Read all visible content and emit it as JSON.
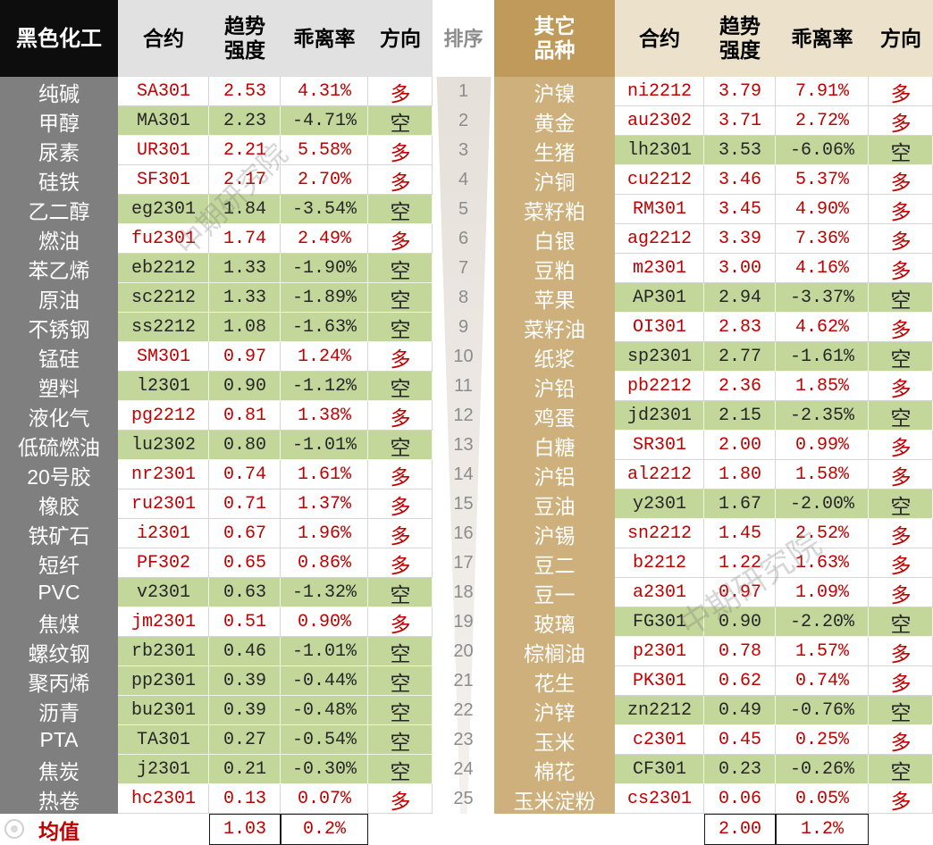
{
  "colors": {
    "group_left_header_bg": "#0d0d0d",
    "group_left_body_bg": "#7f7f7f",
    "group_right_header_bg": "#c09a5b",
    "group_right_body_bg": "#cdb07c",
    "header_left_bg": "#e1e1e1",
    "header_right_bg": "#ece1cb",
    "short_row_bg": "#c4d79b",
    "long_text": "#c00000",
    "short_text": "#262626",
    "rank_text": "#8c8c8c"
  },
  "watermark_text": "中期研究院",
  "chart_data": {
    "type": "table",
    "rank_header": "排序",
    "mean_label": "均值",
    "ranks": [
      1,
      2,
      3,
      4,
      5,
      6,
      7,
      8,
      9,
      10,
      11,
      12,
      13,
      14,
      15,
      16,
      17,
      18,
      19,
      20,
      21,
      22,
      23,
      24,
      25
    ],
    "left": {
      "group_label": "黑色化工",
      "col_contract": "合约",
      "col_strength": "趋势强度",
      "col_deviation": "乖离率",
      "col_direction": "方向",
      "mean_strength": "1.03",
      "mean_deviation": "0.2%",
      "rows": [
        {
          "name": "纯碱",
          "contract": "SA301",
          "strength": "2.53",
          "deviation": "4.31%",
          "direction": "多"
        },
        {
          "name": "甲醇",
          "contract": "MA301",
          "strength": "2.23",
          "deviation": "-4.71%",
          "direction": "空"
        },
        {
          "name": "尿素",
          "contract": "UR301",
          "strength": "2.21",
          "deviation": "5.58%",
          "direction": "多"
        },
        {
          "name": "硅铁",
          "contract": "SF301",
          "strength": "2.17",
          "deviation": "2.70%",
          "direction": "多"
        },
        {
          "name": "乙二醇",
          "contract": "eg2301",
          "strength": "1.84",
          "deviation": "-3.54%",
          "direction": "空"
        },
        {
          "name": "燃油",
          "contract": "fu2301",
          "strength": "1.74",
          "deviation": "2.49%",
          "direction": "多"
        },
        {
          "name": "苯乙烯",
          "contract": "eb2212",
          "strength": "1.33",
          "deviation": "-1.90%",
          "direction": "空"
        },
        {
          "name": "原油",
          "contract": "sc2212",
          "strength": "1.33",
          "deviation": "-1.89%",
          "direction": "空"
        },
        {
          "name": "不锈钢",
          "contract": "ss2212",
          "strength": "1.08",
          "deviation": "-1.63%",
          "direction": "空"
        },
        {
          "name": "锰硅",
          "contract": "SM301",
          "strength": "0.97",
          "deviation": "1.24%",
          "direction": "多"
        },
        {
          "name": "塑料",
          "contract": "l2301",
          "strength": "0.90",
          "deviation": "-1.12%",
          "direction": "空"
        },
        {
          "name": "液化气",
          "contract": "pg2212",
          "strength": "0.81",
          "deviation": "1.38%",
          "direction": "多"
        },
        {
          "name": "低硫燃油",
          "contract": "lu2302",
          "strength": "0.80",
          "deviation": "-1.01%",
          "direction": "空"
        },
        {
          "name": "20号胶",
          "contract": "nr2301",
          "strength": "0.74",
          "deviation": "1.61%",
          "direction": "多"
        },
        {
          "name": "橡胶",
          "contract": "ru2301",
          "strength": "0.71",
          "deviation": "1.37%",
          "direction": "多"
        },
        {
          "name": "铁矿石",
          "contract": "i2301",
          "strength": "0.67",
          "deviation": "1.96%",
          "direction": "多"
        },
        {
          "name": "短纤",
          "contract": "PF302",
          "strength": "0.65",
          "deviation": "0.86%",
          "direction": "多"
        },
        {
          "name": "PVC",
          "contract": "v2301",
          "strength": "0.63",
          "deviation": "-1.32%",
          "direction": "空"
        },
        {
          "name": "焦煤",
          "contract": "jm2301",
          "strength": "0.51",
          "deviation": "0.90%",
          "direction": "多"
        },
        {
          "name": "螺纹钢",
          "contract": "rb2301",
          "strength": "0.46",
          "deviation": "-1.01%",
          "direction": "空"
        },
        {
          "name": "聚丙烯",
          "contract": "pp2301",
          "strength": "0.39",
          "deviation": "-0.44%",
          "direction": "空"
        },
        {
          "name": "沥青",
          "contract": "bu2301",
          "strength": "0.39",
          "deviation": "-0.48%",
          "direction": "空"
        },
        {
          "name": "PTA",
          "contract": "TA301",
          "strength": "0.27",
          "deviation": "-0.54%",
          "direction": "空"
        },
        {
          "name": "焦炭",
          "contract": "j2301",
          "strength": "0.21",
          "deviation": "-0.30%",
          "direction": "空"
        },
        {
          "name": "热卷",
          "contract": "hc2301",
          "strength": "0.13",
          "deviation": "0.07%",
          "direction": "多"
        }
      ]
    },
    "right": {
      "group_label": "其它品种",
      "col_contract": "合约",
      "col_strength": "趋势强度",
      "col_deviation": "乖离率",
      "col_direction": "方向",
      "mean_strength": "2.00",
      "mean_deviation": "1.2%",
      "rows": [
        {
          "name": "沪镍",
          "contract": "ni2212",
          "strength": "3.79",
          "deviation": "7.91%",
          "direction": "多"
        },
        {
          "name": "黄金",
          "contract": "au2302",
          "strength": "3.71",
          "deviation": "2.72%",
          "direction": "多"
        },
        {
          "name": "生猪",
          "contract": "lh2301",
          "strength": "3.53",
          "deviation": "-6.06%",
          "direction": "空"
        },
        {
          "name": "沪铜",
          "contract": "cu2212",
          "strength": "3.46",
          "deviation": "5.37%",
          "direction": "多"
        },
        {
          "name": "菜籽粕",
          "contract": "RM301",
          "strength": "3.45",
          "deviation": "4.90%",
          "direction": "多"
        },
        {
          "name": "白银",
          "contract": "ag2212",
          "strength": "3.39",
          "deviation": "7.36%",
          "direction": "多"
        },
        {
          "name": "豆粕",
          "contract": "m2301",
          "strength": "3.00",
          "deviation": "4.16%",
          "direction": "多"
        },
        {
          "name": "苹果",
          "contract": "AP301",
          "strength": "2.94",
          "deviation": "-3.37%",
          "direction": "空"
        },
        {
          "name": "菜籽油",
          "contract": "OI301",
          "strength": "2.83",
          "deviation": "4.62%",
          "direction": "多"
        },
        {
          "name": "纸浆",
          "contract": "sp2301",
          "strength": "2.77",
          "deviation": "-1.61%",
          "direction": "空"
        },
        {
          "name": "沪铅",
          "contract": "pb2212",
          "strength": "2.36",
          "deviation": "1.85%",
          "direction": "多"
        },
        {
          "name": "鸡蛋",
          "contract": "jd2301",
          "strength": "2.15",
          "deviation": "-2.35%",
          "direction": "空"
        },
        {
          "name": "白糖",
          "contract": "SR301",
          "strength": "2.00",
          "deviation": "0.99%",
          "direction": "多"
        },
        {
          "name": "沪铝",
          "contract": "al2212",
          "strength": "1.80",
          "deviation": "1.58%",
          "direction": "多"
        },
        {
          "name": "豆油",
          "contract": "y2301",
          "strength": "1.67",
          "deviation": "-2.00%",
          "direction": "空"
        },
        {
          "name": "沪锡",
          "contract": "sn2212",
          "strength": "1.45",
          "deviation": "2.52%",
          "direction": "多"
        },
        {
          "name": "豆二",
          "contract": "b2212",
          "strength": "1.22",
          "deviation": "1.63%",
          "direction": "多"
        },
        {
          "name": "豆一",
          "contract": "a2301",
          "strength": "0.97",
          "deviation": "1.09%",
          "direction": "多"
        },
        {
          "name": "玻璃",
          "contract": "FG301",
          "strength": "0.90",
          "deviation": "-2.20%",
          "direction": "空"
        },
        {
          "name": "棕榈油",
          "contract": "p2301",
          "strength": "0.78",
          "deviation": "1.57%",
          "direction": "多"
        },
        {
          "name": "花生",
          "contract": "PK301",
          "strength": "0.62",
          "deviation": "0.74%",
          "direction": "多"
        },
        {
          "name": "沪锌",
          "contract": "zn2212",
          "strength": "0.49",
          "deviation": "-0.76%",
          "direction": "空"
        },
        {
          "name": "玉米",
          "contract": "c2301",
          "strength": "0.45",
          "deviation": "0.25%",
          "direction": "多"
        },
        {
          "name": "棉花",
          "contract": "CF301",
          "strength": "0.23",
          "deviation": "-0.26%",
          "direction": "空"
        },
        {
          "name": "玉米淀粉",
          "contract": "cs2301",
          "strength": "0.06",
          "deviation": "0.05%",
          "direction": "多"
        }
      ]
    }
  }
}
